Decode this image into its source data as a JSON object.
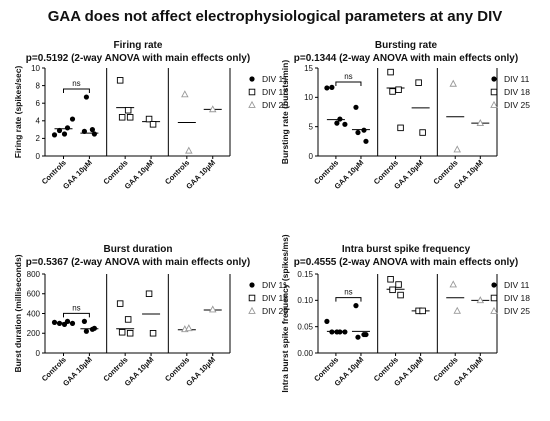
{
  "title": "GAA does not affect electrophysiological parameters at any DIV",
  "legend_labels": [
    "DIV 11",
    "DIV 18",
    "DIV 25"
  ],
  "chart_data": [
    {
      "type": "scatter",
      "title": "Firing rate",
      "subtitle": "p=0.5192 (2-way ANOVA with main effects only)",
      "ylabel": "Firing rate (spikes/sec)",
      "ylim": [
        0,
        10
      ],
      "yticks": [
        "0",
        "2",
        "4",
        "6",
        "8",
        "10"
      ],
      "categories": [
        "Controls",
        "GAA 10µM"
      ],
      "significance": "ns",
      "legend": [
        "DIV 11",
        "DIV 18",
        "DIV 25"
      ],
      "series": [
        {
          "name": "DIV 11",
          "marker": "circle-filled",
          "controls": [
            2.4,
            2.9,
            3.2,
            4.2,
            2.5
          ],
          "controls_mean": 3.1,
          "gaa": [
            2.8,
            3.0,
            6.7,
            2.5
          ],
          "gaa_mean": 2.6
        },
        {
          "name": "DIV 18",
          "marker": "square-open",
          "controls": [
            8.6,
            5.2,
            4.4,
            4.4
          ],
          "controls_mean": 5.5,
          "gaa": [
            4.2,
            3.6
          ],
          "gaa_mean": 3.9
        },
        {
          "name": "DIV 25",
          "marker": "triangle-open",
          "controls": [
            7.0,
            0.6
          ],
          "controls_mean": 3.8,
          "gaa": [
            5.3
          ],
          "gaa_mean": 5.3
        }
      ]
    },
    {
      "type": "scatter",
      "title": "Bursting rate",
      "subtitle": "p=0.1344 (2-way ANOVA with main effects only)",
      "ylabel": "Bursting rate (bursts/min)",
      "ylim": [
        0,
        15
      ],
      "yticks": [
        "0",
        "5",
        "10",
        "15"
      ],
      "categories": [
        "Controls",
        "GAA 10µM"
      ],
      "significance": "ns",
      "legend": [
        "DIV 11",
        "DIV 18",
        "DIV 25"
      ],
      "series": [
        {
          "name": "DIV 11",
          "marker": "circle-filled",
          "controls": [
            11.6,
            11.7,
            6.3,
            5.4,
            5.6
          ],
          "controls_mean": 6.2,
          "gaa": [
            8.3,
            4.4,
            4.0,
            2.5
          ],
          "gaa_mean": 4.5
        },
        {
          "name": "DIV 18",
          "marker": "square-open",
          "controls": [
            14.3,
            11.3,
            11.0,
            4.8
          ],
          "controls_mean": 11.6,
          "gaa": [
            12.5,
            4.0
          ],
          "gaa_mean": 8.2
        },
        {
          "name": "DIV 25",
          "marker": "triangle-open",
          "controls": [
            12.3,
            1.1
          ],
          "controls_mean": 6.7,
          "gaa": [
            5.6
          ],
          "gaa_mean": 5.6
        }
      ]
    },
    {
      "type": "scatter",
      "title": "Burst duration",
      "subtitle": "p=0.5367 (2-way ANOVA with main effects only)",
      "ylabel": "Burst duration (milliseconds)",
      "ylim": [
        0,
        800
      ],
      "yticks": [
        "0",
        "200",
        "400",
        "600",
        "800"
      ],
      "categories": [
        "Controls",
        "GAA 10µM"
      ],
      "significance": "ns",
      "legend": [
        "DIV 11",
        "DIV 18",
        "DIV 25"
      ],
      "series": [
        {
          "name": "DIV 11",
          "marker": "circle-filled",
          "controls": [
            310,
            300,
            320,
            300,
            290
          ],
          "controls_mean": 305,
          "gaa": [
            320,
            240,
            220,
            250
          ],
          "gaa_mean": 245
        },
        {
          "name": "DIV 18",
          "marker": "square-open",
          "controls": [
            500,
            340,
            210,
            200
          ],
          "controls_mean": 245,
          "gaa": [
            600,
            200
          ],
          "gaa_mean": 395
        },
        {
          "name": "DIV 25",
          "marker": "triangle-open",
          "controls": [
            240,
            250
          ],
          "controls_mean": 235,
          "gaa": [
            440
          ],
          "gaa_mean": 435
        }
      ]
    },
    {
      "type": "scatter",
      "title": "Intra burst spike frequency",
      "subtitle": "p=0.4555 (2-way ANOVA with main effects only)",
      "ylabel": "Intra burst spike frequency (spikes/ms)",
      "ylim": [
        0,
        0.15
      ],
      "yticks": [
        "0.00",
        "0.05",
        "0.10",
        "0.15"
      ],
      "categories": [
        "Controls",
        "GAA 10µM"
      ],
      "significance": "ns",
      "legend": [
        "DIV 11",
        "DIV 18",
        "DIV 25"
      ],
      "series": [
        {
          "name": "DIV 11",
          "marker": "circle-filled",
          "controls": [
            0.06,
            0.04,
            0.04,
            0.04,
            0.04
          ],
          "controls_mean": 0.041,
          "gaa": [
            0.09,
            0.035,
            0.03,
            0.035
          ],
          "gaa_mean": 0.041
        },
        {
          "name": "DIV 18",
          "marker": "square-open",
          "controls": [
            0.14,
            0.13,
            0.12,
            0.11
          ],
          "controls_mean": 0.121,
          "gaa": [
            0.08,
            0.08
          ],
          "gaa_mean": 0.08
        },
        {
          "name": "DIV 25",
          "marker": "triangle-open",
          "controls": [
            0.13,
            0.08
          ],
          "controls_mean": 0.105,
          "gaa": [
            0.1
          ],
          "gaa_mean": 0.1
        }
      ]
    }
  ]
}
